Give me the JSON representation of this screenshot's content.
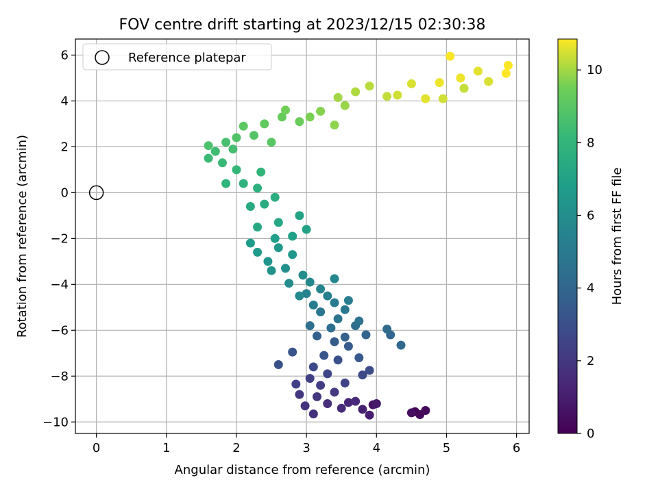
{
  "chart_data": {
    "type": "scatter",
    "title": "FOV centre drift starting at 2023/12/15 02:30:38",
    "xlabel": "Angular distance from reference (arcmin)",
    "ylabel": "Rotation from reference (arcmin)",
    "xlim": [
      -0.3,
      6.18
    ],
    "ylim": [
      -10.5,
      6.7
    ],
    "x_ticks": [
      0,
      1,
      2,
      3,
      4,
      5,
      6
    ],
    "y_ticks": [
      -10,
      -8,
      -6,
      -4,
      -2,
      0,
      2,
      4,
      6
    ],
    "x_tick_labels": [
      "0",
      "1",
      "2",
      "3",
      "4",
      "5",
      "6"
    ],
    "y_tick_labels": [
      "−10",
      "−8",
      "−6",
      "−4",
      "−2",
      "0",
      "2",
      "4",
      "6"
    ],
    "grid": true,
    "legend": {
      "placement": "top-left",
      "entries": [
        "Reference platepar"
      ]
    },
    "reference_point": {
      "label": "Reference platepar",
      "x": 0,
      "y": 0
    },
    "colorbar": {
      "label": "Hours from first FF file",
      "colormap": "viridis",
      "range": [
        0,
        10.85
      ],
      "ticks": [
        0,
        2,
        4,
        6,
        8,
        10
      ],
      "tick_labels": [
        "0",
        "2",
        "4",
        "6",
        "8",
        "10"
      ]
    },
    "series": [
      {
        "points": [
          [
            4.55,
            -9.55,
            0.1
          ],
          [
            4.62,
            -9.68,
            0.2
          ],
          [
            4.7,
            -9.5,
            0.3
          ],
          [
            4.5,
            -9.6,
            0.4
          ],
          [
            3.95,
            -9.25,
            0.6
          ],
          [
            4.0,
            -9.2,
            0.8
          ],
          [
            3.9,
            -9.7,
            1.0
          ],
          [
            3.8,
            -9.45,
            1.1
          ],
          [
            3.6,
            -9.15,
            1.3
          ],
          [
            3.7,
            -9.1,
            1.4
          ],
          [
            3.5,
            -9.4,
            1.5
          ],
          [
            3.3,
            -9.2,
            1.6
          ],
          [
            3.1,
            -9.65,
            1.7
          ],
          [
            2.98,
            -9.3,
            1.8
          ],
          [
            3.15,
            -8.9,
            1.9
          ],
          [
            2.9,
            -8.8,
            2.0
          ],
          [
            3.4,
            -8.7,
            2.1
          ],
          [
            3.2,
            -8.4,
            2.2
          ],
          [
            3.05,
            -8.1,
            2.3
          ],
          [
            2.85,
            -8.35,
            2.4
          ],
          [
            3.55,
            -8.3,
            2.5
          ],
          [
            3.3,
            -7.9,
            2.6
          ],
          [
            3.1,
            -7.6,
            2.7
          ],
          [
            3.8,
            -7.95,
            2.8
          ],
          [
            3.9,
            -7.75,
            2.9
          ],
          [
            3.45,
            -7.3,
            3.0
          ],
          [
            2.6,
            -7.5,
            3.1
          ],
          [
            2.8,
            -6.95,
            3.2
          ],
          [
            3.25,
            -7.1,
            3.3
          ],
          [
            3.75,
            -7.2,
            3.4
          ],
          [
            3.6,
            -6.7,
            3.5
          ],
          [
            3.4,
            -6.5,
            3.6
          ],
          [
            3.15,
            -6.25,
            3.7
          ],
          [
            3.55,
            -6.3,
            3.8
          ],
          [
            3.85,
            -6.2,
            3.9
          ],
          [
            4.2,
            -6.2,
            4.0
          ],
          [
            4.35,
            -6.65,
            4.1
          ],
          [
            4.15,
            -5.95,
            4.2
          ],
          [
            3.7,
            -5.8,
            4.3
          ],
          [
            3.35,
            -5.9,
            4.4
          ],
          [
            3.05,
            -5.8,
            4.5
          ],
          [
            3.75,
            -5.6,
            4.6
          ],
          [
            3.45,
            -5.5,
            4.7
          ],
          [
            3.2,
            -5.2,
            4.8
          ],
          [
            3.55,
            -5.1,
            4.9
          ],
          [
            3.4,
            -4.8,
            5.0
          ],
          [
            3.1,
            -4.9,
            5.1
          ],
          [
            3.6,
            -4.7,
            5.2
          ],
          [
            3.3,
            -4.5,
            5.3
          ],
          [
            3.0,
            -4.4,
            5.4
          ],
          [
            3.2,
            -4.2,
            5.5
          ],
          [
            3.4,
            -3.75,
            5.6
          ],
          [
            3.05,
            -3.9,
            5.7
          ],
          [
            2.9,
            -4.5,
            5.8
          ],
          [
            2.75,
            -3.95,
            5.9
          ],
          [
            2.95,
            -3.6,
            6.0
          ],
          [
            2.7,
            -3.3,
            6.1
          ],
          [
            2.5,
            -3.4,
            6.2
          ],
          [
            2.45,
            -3.0,
            6.3
          ],
          [
            2.8,
            -2.7,
            6.4
          ],
          [
            2.6,
            -2.4,
            6.5
          ],
          [
            2.3,
            -2.6,
            6.6
          ],
          [
            2.2,
            -2.2,
            6.7
          ],
          [
            2.55,
            -2.0,
            6.8
          ],
          [
            2.8,
            -1.9,
            6.9
          ],
          [
            3.0,
            -1.6,
            7.0
          ],
          [
            2.9,
            -1.0,
            7.1
          ],
          [
            2.6,
            -1.3,
            7.2
          ],
          [
            2.3,
            -1.5,
            7.3
          ],
          [
            2.2,
            -0.6,
            7.4
          ],
          [
            2.4,
            -0.5,
            7.5
          ],
          [
            2.55,
            -0.2,
            7.6
          ],
          [
            2.3,
            0.2,
            7.7
          ],
          [
            2.1,
            0.4,
            7.8
          ],
          [
            1.85,
            0.4,
            7.9
          ],
          [
            2.35,
            0.9,
            8.0
          ],
          [
            2.0,
            1.0,
            8.1
          ],
          [
            1.8,
            1.3,
            8.2
          ],
          [
            1.6,
            1.5,
            8.3
          ],
          [
            1.7,
            1.8,
            8.4
          ],
          [
            1.95,
            1.9,
            8.5
          ],
          [
            1.85,
            2.2,
            8.6
          ],
          [
            1.6,
            2.05,
            8.7
          ],
          [
            2.0,
            2.4,
            8.8
          ],
          [
            2.25,
            2.5,
            8.9
          ],
          [
            2.5,
            2.2,
            9.0
          ],
          [
            2.1,
            2.9,
            9.1
          ],
          [
            2.4,
            3.0,
            9.2
          ],
          [
            2.65,
            3.3,
            9.3
          ],
          [
            2.9,
            3.1,
            9.4
          ],
          [
            2.7,
            3.6,
            9.5
          ],
          [
            3.05,
            3.3,
            9.6
          ],
          [
            3.2,
            3.55,
            9.7
          ],
          [
            3.4,
            2.95,
            9.8
          ],
          [
            3.55,
            3.8,
            9.9
          ],
          [
            3.45,
            4.15,
            10.0
          ],
          [
            3.7,
            4.4,
            10.1
          ],
          [
            3.9,
            4.65,
            10.2
          ],
          [
            4.15,
            4.2,
            10.3
          ],
          [
            4.3,
            4.25,
            10.4
          ],
          [
            4.5,
            4.75,
            10.5
          ],
          [
            4.7,
            4.1,
            10.6
          ],
          [
            4.9,
            4.8,
            10.7
          ],
          [
            5.05,
            5.95,
            10.8
          ],
          [
            5.25,
            4.55,
            10.3
          ],
          [
            5.45,
            5.3,
            10.6
          ],
          [
            5.6,
            4.85,
            10.5
          ],
          [
            5.85,
            5.2,
            10.85
          ],
          [
            5.88,
            5.55,
            10.8
          ],
          [
            4.95,
            4.1,
            10.4
          ],
          [
            5.2,
            5.0,
            10.7
          ]
        ]
      }
    ]
  }
}
